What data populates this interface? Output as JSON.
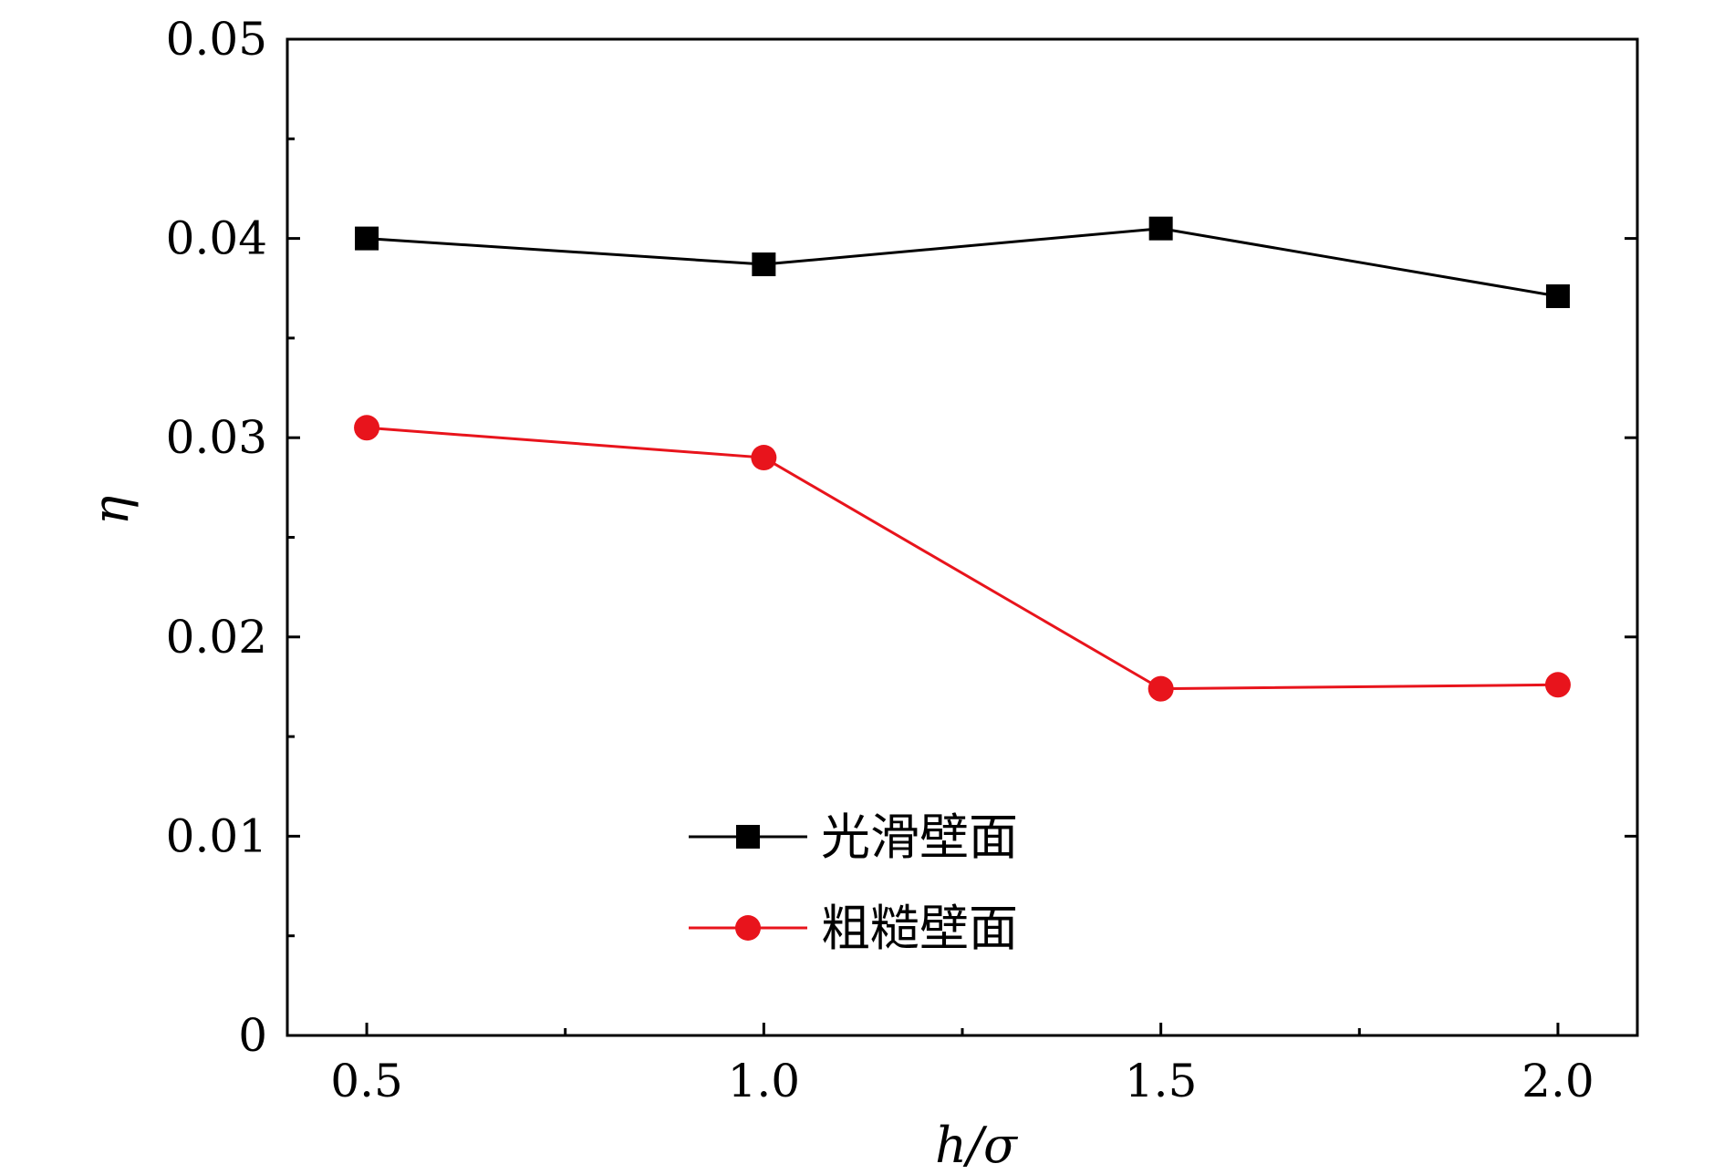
{
  "chart_data": {
    "type": "line",
    "x": [
      0.5,
      1.0,
      1.5,
      2.0
    ],
    "xlabel": "h/σ",
    "ylabel": "η",
    "xlim": [
      0.4,
      2.1
    ],
    "ylim": [
      0,
      0.05
    ],
    "x_ticks": [
      "0.5",
      "1.0",
      "1.5",
      "2.0"
    ],
    "y_ticks": [
      "0",
      "0.01",
      "0.02",
      "0.03",
      "0.04",
      "0.05"
    ],
    "grid": false,
    "legend_position": "bottom-center",
    "series": [
      {
        "name": "光滑壁面",
        "color": "#000000",
        "marker": "square",
        "values": [
          0.04,
          0.0387,
          0.0405,
          0.0371
        ]
      },
      {
        "name": "粗糙壁面",
        "color": "#e8141c",
        "marker": "circle",
        "values": [
          0.0305,
          0.029,
          0.0174,
          0.0176
        ]
      }
    ]
  }
}
